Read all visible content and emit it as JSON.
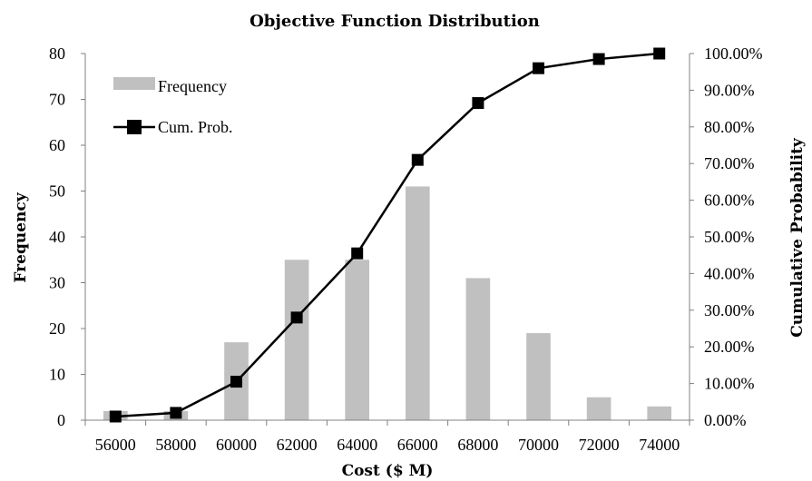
{
  "chart_data": {
    "type": "bar",
    "title": "Objective Function Distribution",
    "xlabel": "Cost ($ M)",
    "ylabel": "Frequency",
    "y2label": "Cumulative Probability",
    "categories": [
      "56000",
      "58000",
      "60000",
      "62000",
      "64000",
      "66000",
      "68000",
      "70000",
      "72000",
      "74000"
    ],
    "series": [
      {
        "name": "Frequency",
        "kind": "bar",
        "axis": "left",
        "color": "#c0c0c0",
        "values": [
          2,
          2,
          17,
          35,
          35,
          51,
          31,
          19,
          5,
          3
        ]
      },
      {
        "name": "Cum. Prob.",
        "kind": "line",
        "axis": "right",
        "color": "#000000",
        "marker": "square",
        "values": [
          1.0,
          2.0,
          10.5,
          28.0,
          45.5,
          71.0,
          86.5,
          96.0,
          98.5,
          100.0
        ]
      }
    ],
    "ylim": [
      0,
      80
    ],
    "yticks": [
      "0",
      "10",
      "20",
      "30",
      "40",
      "50",
      "60",
      "70",
      "80"
    ],
    "y2lim": [
      0,
      100
    ],
    "y2ticks": [
      "0.00%",
      "10.00%",
      "20.00%",
      "30.00%",
      "40.00%",
      "50.00%",
      "60.00%",
      "70.00%",
      "80.00%",
      "90.00%",
      "100.00%"
    ],
    "grid": false,
    "legend": "top-left"
  }
}
